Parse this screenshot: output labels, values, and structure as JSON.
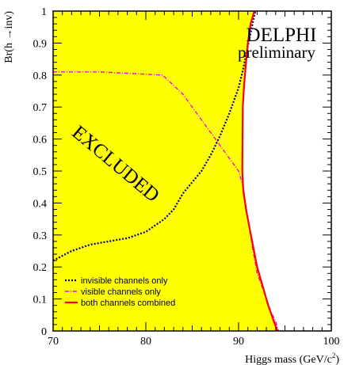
{
  "chart_data": {
    "type": "line",
    "title": "",
    "xlabel_main": "Higgs mass (GeV/c",
    "xlabel_sup": "2",
    "xlabel_close": ")",
    "ylabel": "Br(h →inv)",
    "xlim": [
      70,
      100
    ],
    "ylim": [
      0,
      1
    ],
    "x_ticks": [
      70,
      80,
      90,
      100
    ],
    "y_ticks": [
      0,
      0.1,
      0.2,
      0.3,
      0.4,
      0.5,
      0.6,
      0.7,
      0.8,
      0.9,
      1
    ],
    "x_tick_labels": [
      "70",
      "80",
      "90",
      "100"
    ],
    "y_tick_labels": [
      "0",
      "0.1",
      "0.2",
      "0.3",
      "0.4",
      "0.5",
      "0.6",
      "0.7",
      "0.8",
      "0.9",
      "1"
    ],
    "grid": false,
    "legend_position": "bottom-left",
    "fill_color": "#ffff00",
    "annotations": {
      "experiment": "DELPHI",
      "status": "preliminary",
      "region": "EXCLUDED"
    },
    "series": [
      {
        "name": "invisible channels only",
        "color": "#000080",
        "style": "dotted",
        "x": [
          70,
          72,
          74,
          76,
          78,
          79,
          80,
          81,
          82,
          83,
          84,
          86,
          87,
          88,
          89,
          90,
          90.5,
          91,
          91.5,
          91.8
        ],
        "y": [
          0.22,
          0.25,
          0.27,
          0.28,
          0.29,
          0.3,
          0.31,
          0.33,
          0.35,
          0.38,
          0.43,
          0.5,
          0.55,
          0.61,
          0.68,
          0.76,
          0.82,
          0.89,
          0.96,
          1.0
        ]
      },
      {
        "name": "visible channels only",
        "color": "#ff00ff",
        "style": "dash-dot",
        "x": [
          70,
          75,
          81.8,
          84,
          86,
          88,
          89,
          90,
          90.5,
          91,
          91.5,
          92,
          92.5,
          93,
          93.5,
          94,
          94.3
        ],
        "y": [
          0.81,
          0.81,
          0.8,
          0.74,
          0.66,
          0.58,
          0.54,
          0.5,
          0.45,
          0.35,
          0.26,
          0.18,
          0.14,
          0.1,
          0.06,
          0.03,
          0.0
        ]
      },
      {
        "name": "both channels combined",
        "color": "#ff0000",
        "style": "solid",
        "x": [
          91.7,
          91.3,
          91.0,
          90.8,
          90.6,
          90.45,
          90.4,
          90.5,
          90.8,
          91.2,
          91.6,
          92.0,
          92.6,
          93.2,
          93.8,
          94.2
        ],
        "y": [
          1.0,
          0.96,
          0.9,
          0.84,
          0.77,
          0.7,
          0.5,
          0.44,
          0.38,
          0.32,
          0.26,
          0.2,
          0.14,
          0.08,
          0.03,
          0.0
        ]
      }
    ]
  }
}
